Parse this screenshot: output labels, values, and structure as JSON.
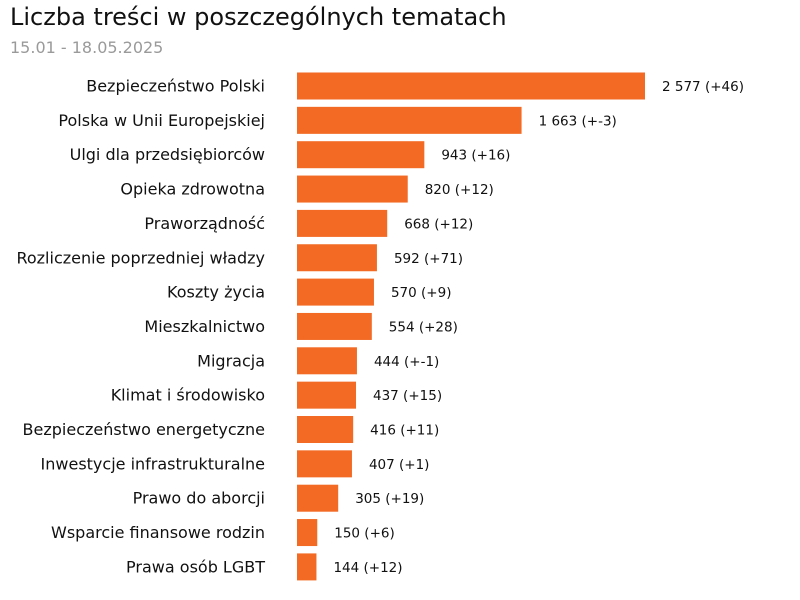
{
  "chart_data": {
    "type": "bar",
    "orientation": "horizontal",
    "title": "Liczba treści w poszczególnych tematach",
    "subtitle": "15.01 - 18.05.2025",
    "xlim": [
      0,
      2577
    ],
    "bar_color": "#f26a24",
    "categories": [
      "Bezpieczeństwo Polski",
      "Polska w Unii Europejskiej",
      "Ulgi dla przedsiębiorców",
      "Opieka zdrowotna",
      "Praworządność",
      "Rozliczenie poprzedniej władzy",
      "Koszty życia",
      "Mieszkalnictwo",
      "Migracja",
      "Klimat i środowisko",
      "Bezpieczeństwo energetyczne",
      "Inwestycje infrastrukturalne",
      "Prawo do aborcji",
      "Wsparcie finansowe rodzin",
      "Prawa osób LGBT"
    ],
    "values": [
      2577,
      1663,
      943,
      820,
      668,
      592,
      570,
      554,
      444,
      437,
      416,
      407,
      305,
      150,
      144
    ],
    "value_labels": [
      "2 577 (+46)",
      "1 663 (+-3)",
      "943 (+16)",
      "820 (+12)",
      "668 (+12)",
      "592 (+71)",
      "570 (+9)",
      "554 (+28)",
      "444 (+-1)",
      "437 (+15)",
      "416 (+11)",
      "407 (+1)",
      "305 (+19)",
      "150 (+6)",
      "144 (+12)"
    ]
  }
}
